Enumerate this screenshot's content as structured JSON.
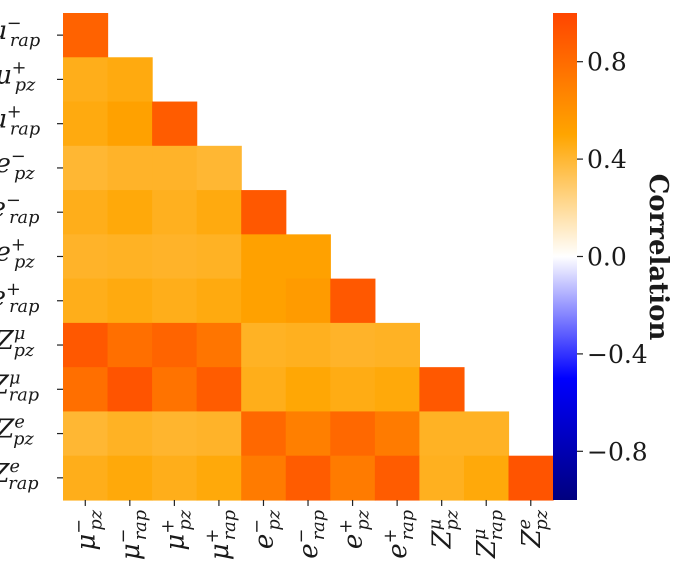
{
  "chart_data": {
    "type": "heatmap",
    "title": "",
    "xlabel": "",
    "ylabel": "",
    "mask": "lower-triangular",
    "labels": [
      {
        "base": "μ",
        "sup": "−",
        "sub": "rap"
      },
      {
        "base": "μ",
        "sup": "+",
        "sub": "pz"
      },
      {
        "base": "μ",
        "sup": "+",
        "sub": "rap"
      },
      {
        "base": "e",
        "sup": "−",
        "sub": "pz"
      },
      {
        "base": "e",
        "sup": "−",
        "sub": "rap"
      },
      {
        "base": "e",
        "sup": "+",
        "sub": "pz"
      },
      {
        "base": "e",
        "sup": "+",
        "sub": "rap"
      },
      {
        "base": "Z",
        "sup": "μ",
        "sub": "pz"
      },
      {
        "base": "Z",
        "sup": "μ",
        "sub": "rap"
      },
      {
        "base": "Z",
        "sup": "e",
        "sub": "pz"
      },
      {
        "base": "Z",
        "sup": "e",
        "sub": "rap"
      }
    ],
    "xlabels": [
      {
        "base": "μ",
        "sup": "−",
        "sub": "pz"
      },
      {
        "base": "μ",
        "sup": "−",
        "sub": "rap"
      },
      {
        "base": "μ",
        "sup": "+",
        "sub": "pz"
      },
      {
        "base": "μ",
        "sup": "+",
        "sub": "rap"
      },
      {
        "base": "e",
        "sup": "−",
        "sub": "pz"
      },
      {
        "base": "e",
        "sup": "−",
        "sub": "rap"
      },
      {
        "base": "e",
        "sup": "+",
        "sub": "pz"
      },
      {
        "base": "e",
        "sup": "+",
        "sub": "rap"
      },
      {
        "base": "Z",
        "sup": "μ",
        "sub": "pz"
      },
      {
        "base": "Z",
        "sup": "μ",
        "sub": "rap"
      },
      {
        "base": "Z",
        "sup": "e",
        "sub": "pz"
      }
    ],
    "values": [
      [
        0.85
      ],
      [
        0.45,
        0.47
      ],
      [
        0.47,
        0.52,
        0.88
      ],
      [
        0.4,
        0.42,
        0.42,
        0.4
      ],
      [
        0.45,
        0.48,
        0.44,
        0.47,
        0.9
      ],
      [
        0.42,
        0.43,
        0.42,
        0.43,
        0.52,
        0.52
      ],
      [
        0.45,
        0.47,
        0.45,
        0.47,
        0.52,
        0.55,
        0.9
      ],
      [
        0.9,
        0.78,
        0.84,
        0.75,
        0.43,
        0.44,
        0.42,
        0.43
      ],
      [
        0.78,
        0.92,
        0.76,
        0.88,
        0.45,
        0.49,
        0.46,
        0.48,
        0.9
      ],
      [
        0.4,
        0.43,
        0.41,
        0.42,
        0.82,
        0.7,
        0.82,
        0.72,
        0.43,
        0.43
      ],
      [
        0.45,
        0.48,
        0.45,
        0.48,
        0.72,
        0.88,
        0.72,
        0.88,
        0.44,
        0.48,
        0.92
      ]
    ],
    "colorbar": {
      "label": "Correlation",
      "vmin": -1.0,
      "vmax": 1.0,
      "ticks": [
        0.8,
        0.4,
        0.0,
        -0.4,
        -0.8
      ],
      "tick_labels": [
        "0.8",
        "0.4",
        "0.0",
        "−0.4",
        "−0.8"
      ],
      "colors": [
        "#00007f",
        "#0000ff",
        "#ffffff",
        "#ffa500",
        "#ff4500"
      ]
    }
  }
}
